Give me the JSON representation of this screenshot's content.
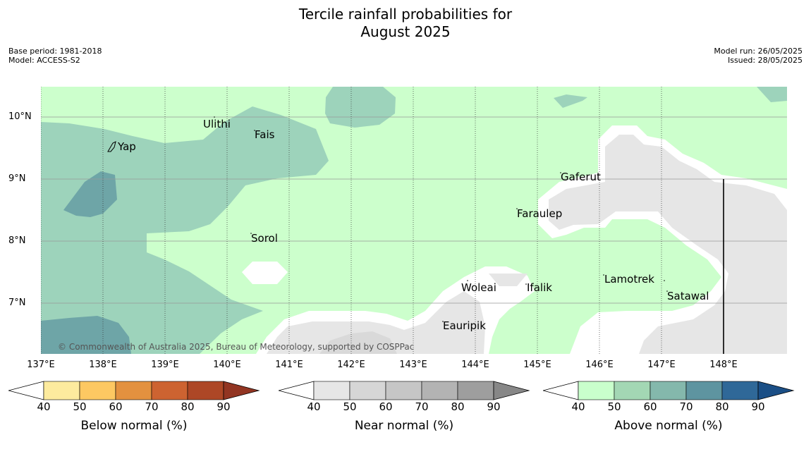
{
  "title": {
    "line1": "Tercile rainfall probabilities for",
    "line2": "August 2025"
  },
  "meta_left": {
    "base_period": "Base period: 1981-2018",
    "model": "Model: ACCESS-S2"
  },
  "meta_right": {
    "model_run": "Model run: 26/05/2025",
    "issued": "Issued: 28/05/2025"
  },
  "map": {
    "lat_labels": [
      "10°N",
      "9°N",
      "8°N",
      "7°N"
    ],
    "lon_labels": [
      "137°E",
      "138°E",
      "139°E",
      "140°E",
      "141°E",
      "142°E",
      "143°E",
      "144°E",
      "145°E",
      "146°E",
      "147°E",
      "148°E"
    ],
    "places": [
      "Yap",
      "Ulithi",
      "Fais",
      "Sorol",
      "Gaferut",
      "Faraulep",
      "Woleai",
      "Ifalik",
      "Lamotrek",
      "Satawal",
      "Eauripik"
    ],
    "copyright": "© Commonwealth of Australia 2025, Bureau of Meteorology, supported by COSPPac",
    "colors": {
      "above_40_50": "#ccffcc",
      "above_60_70": "#9dd3bb",
      "above_70_80": "#6ea5a7",
      "near_40_50": "#e6e6e6",
      "near_50_60": "#d9d9d9"
    }
  },
  "colorbars": [
    {
      "label": "Below normal (%)",
      "ticks": [
        "40",
        "50",
        "60",
        "70",
        "80",
        "90"
      ],
      "colors": [
        "#ffffff",
        "#fdeb9e",
        "#fdc862",
        "#e3913f",
        "#cd6331",
        "#ad4726",
        "#923522"
      ]
    },
    {
      "label": "Near normal (%)",
      "ticks": [
        "40",
        "50",
        "60",
        "70",
        "80",
        "90"
      ],
      "colors": [
        "#ffffff",
        "#e6e6e6",
        "#d6d6d6",
        "#c6c6c6",
        "#b3b3b3",
        "#9e9e9e",
        "#878787"
      ]
    },
    {
      "label": "Above normal (%)",
      "ticks": [
        "40",
        "50",
        "60",
        "70",
        "80",
        "90"
      ],
      "colors": [
        "#ffffff",
        "#c9ffcc",
        "#a3d7b4",
        "#84b8ac",
        "#5e94a0",
        "#2f6898",
        "#1b4f86"
      ]
    }
  ]
}
